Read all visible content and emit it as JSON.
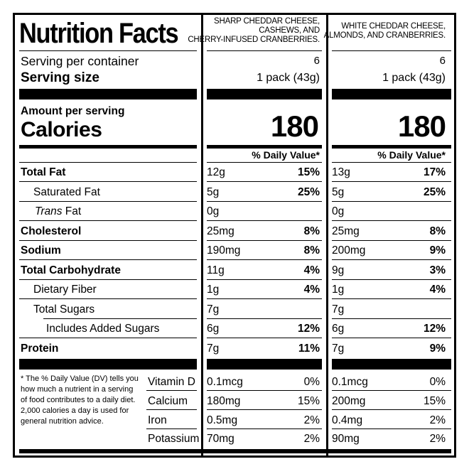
{
  "header": {
    "title": "Nutrition Facts",
    "servings_label": "Serving per container",
    "serving_size_label": "Serving size",
    "amount_per_serving": "Amount per serving",
    "calories_label": "Calories",
    "dv_header": "% Daily Value*"
  },
  "products": [
    {
      "name_line1": "SHARP CHEDDAR CHEESE,",
      "name_line2": "CASHEWS, AND",
      "name_line3": "CHERRY-INFUSED CRANBERRIES.",
      "servings": "6",
      "serving_size": "1 pack (43g)",
      "calories": "180",
      "nutrients": {
        "total_fat": {
          "amount": "12g",
          "dv": "15%"
        },
        "saturated_fat": {
          "amount": "5g",
          "dv": "25%"
        },
        "trans_fat": {
          "amount": "0g",
          "dv": ""
        },
        "cholesterol": {
          "amount": "25mg",
          "dv": "8%"
        },
        "sodium": {
          "amount": "190mg",
          "dv": "8%"
        },
        "total_carb": {
          "amount": "11g",
          "dv": "4%"
        },
        "dietary_fiber": {
          "amount": "1g",
          "dv": "4%"
        },
        "total_sugars": {
          "amount": "7g",
          "dv": ""
        },
        "added_sugars": {
          "amount": "6g",
          "dv": "12%"
        },
        "protein": {
          "amount": "7g",
          "dv": "11%"
        }
      },
      "minerals": {
        "vitamin_d": {
          "amount": "0.1mcg",
          "dv": "0%"
        },
        "calcium": {
          "amount": "180mg",
          "dv": "15%"
        },
        "iron": {
          "amount": "0.5mg",
          "dv": "2%"
        },
        "potassium": {
          "amount": "70mg",
          "dv": "2%"
        }
      }
    },
    {
      "name_line1": "WHITE CHEDDAR CHEESE,",
      "name_line2": "ALMONDS, AND CRANBERRIES.",
      "name_line3": "",
      "servings": "6",
      "serving_size": "1 pack (43g)",
      "calories": "180",
      "nutrients": {
        "total_fat": {
          "amount": "13g",
          "dv": "17%"
        },
        "saturated_fat": {
          "amount": "5g",
          "dv": "25%"
        },
        "trans_fat": {
          "amount": "0g",
          "dv": ""
        },
        "cholesterol": {
          "amount": "25mg",
          "dv": "8%"
        },
        "sodium": {
          "amount": "200mg",
          "dv": "9%"
        },
        "total_carb": {
          "amount": "9g",
          "dv": "3%"
        },
        "dietary_fiber": {
          "amount": "1g",
          "dv": "4%"
        },
        "total_sugars": {
          "amount": "7g",
          "dv": ""
        },
        "added_sugars": {
          "amount": "6g",
          "dv": "12%"
        },
        "protein": {
          "amount": "7g",
          "dv": "9%"
        }
      },
      "minerals": {
        "vitamin_d": {
          "amount": "0.1mcg",
          "dv": "0%"
        },
        "calcium": {
          "amount": "200mg",
          "dv": "15%"
        },
        "iron": {
          "amount": "0.4mg",
          "dv": "2%"
        },
        "potassium": {
          "amount": "90mg",
          "dv": "2%"
        }
      }
    }
  ],
  "nutrient_labels": {
    "total_fat": "Total Fat",
    "saturated_fat": "Saturated Fat",
    "trans_fat_italic": "Trans",
    "trans_fat_rest": " Fat",
    "cholesterol": "Cholesterol",
    "sodium": "Sodium",
    "total_carb": "Total Carbohydrate",
    "dietary_fiber": "Dietary Fiber",
    "total_sugars": "Total Sugars",
    "added_sugars": "Includes Added Sugars",
    "protein": "Protein"
  },
  "mineral_labels": {
    "vitamin_d": "Vitamin D",
    "calcium": "Calcium",
    "iron": "Iron",
    "potassium": "Potassium"
  },
  "footnote": "* The % Daily Value (DV) tells you how much a nutrient in a serving of food contributes to a daily diet. 2,000 calories a day is used for general nutrition advice."
}
